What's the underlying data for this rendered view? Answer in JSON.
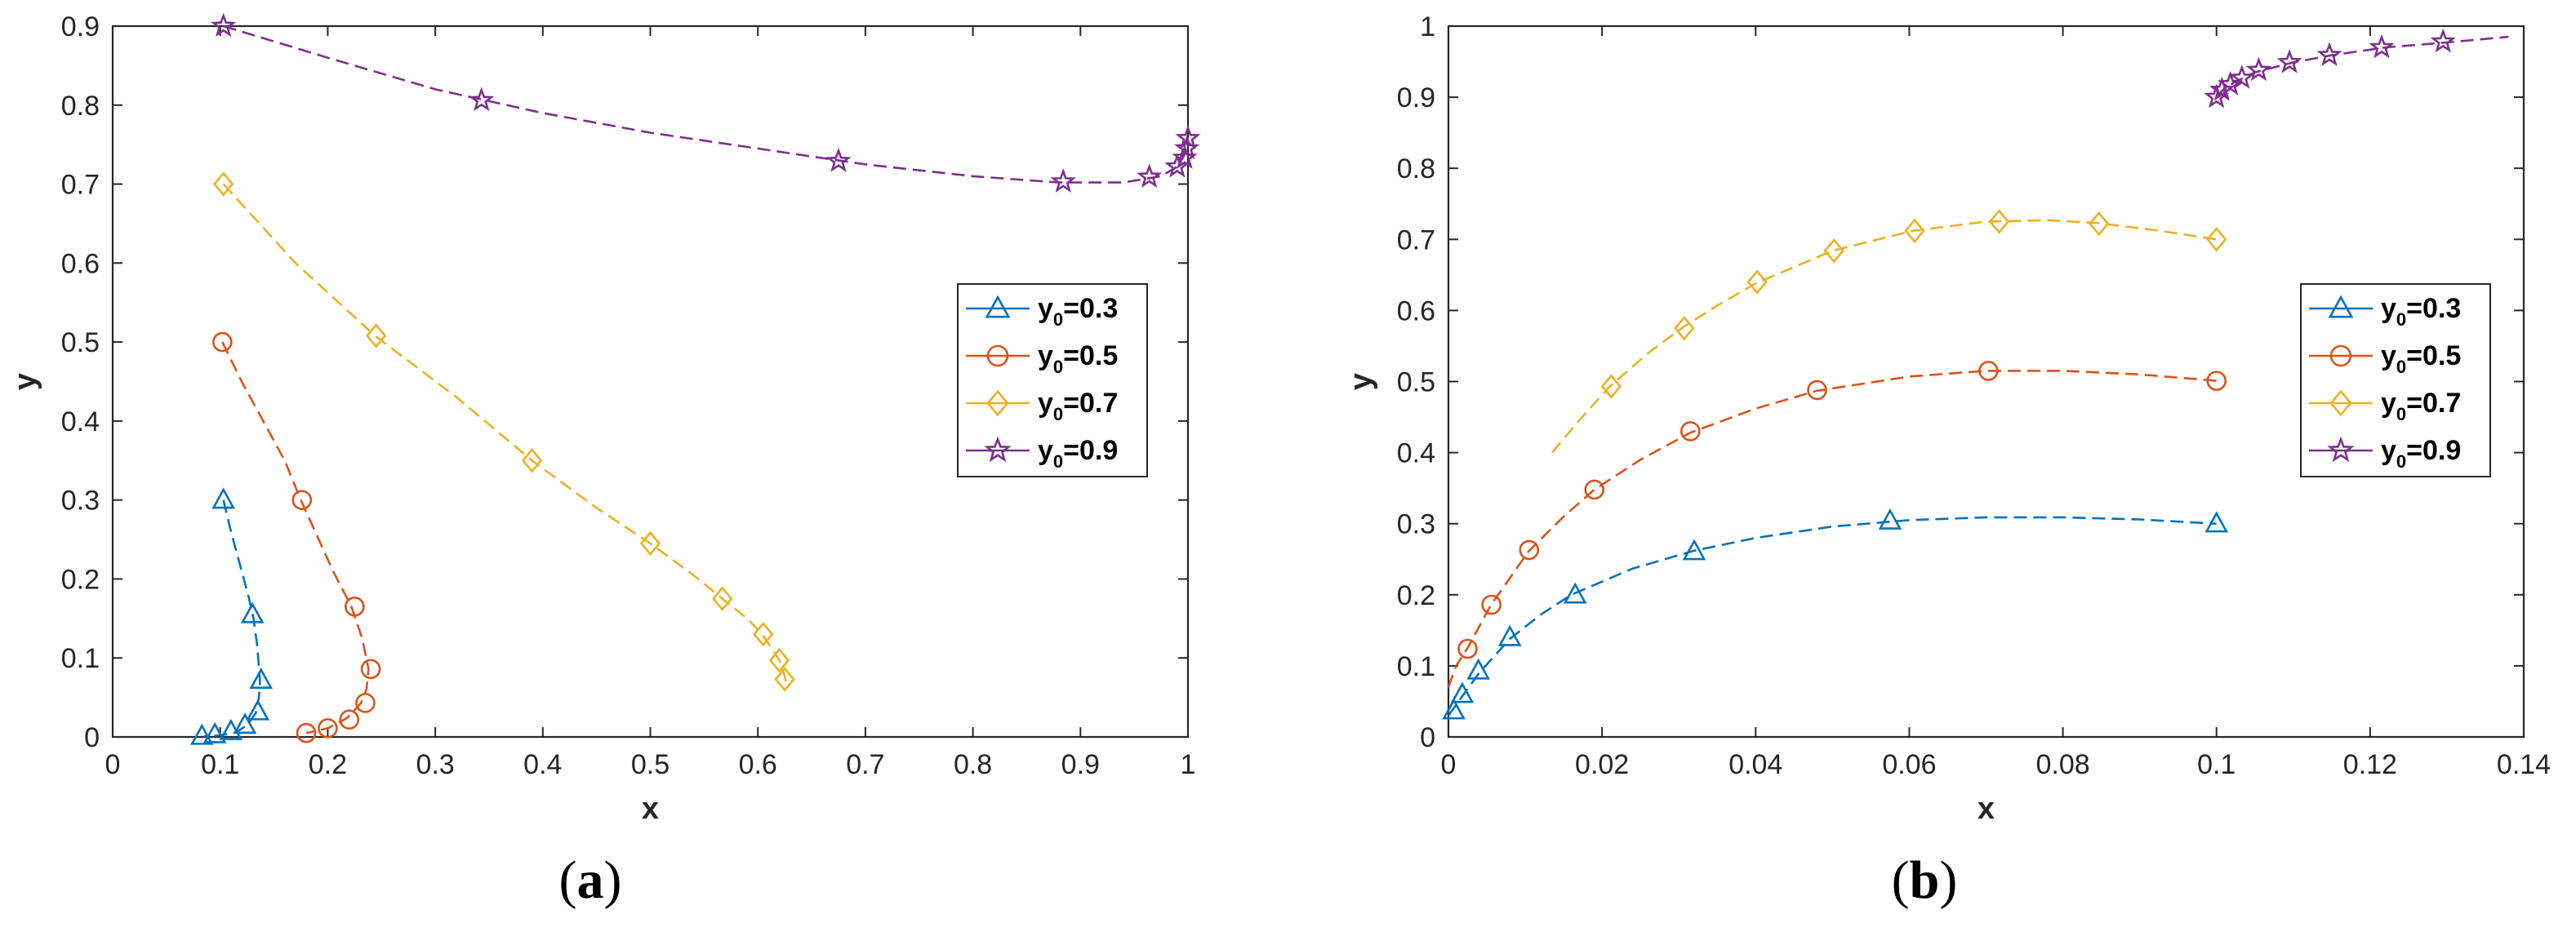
{
  "colors": {
    "s03": "#0072BD",
    "s05": "#D95319",
    "s07": "#EDB120",
    "s09": "#7E2F8E"
  },
  "panel_labels": {
    "a": {
      "open": "(",
      "letter": "a",
      "close": ")"
    },
    "b": {
      "open": "(",
      "letter": "b",
      "close": ")"
    }
  },
  "legend": [
    {
      "prefix": "y",
      "sub": "0",
      "suffix": "=0.3"
    },
    {
      "prefix": "y",
      "sub": "0",
      "suffix": "=0.5"
    },
    {
      "prefix": "y",
      "sub": "0",
      "suffix": "=0.7"
    },
    {
      "prefix": "y",
      "sub": "0",
      "suffix": "=0.9"
    }
  ],
  "chart_data": [
    {
      "type": "line",
      "panel": "a",
      "xlabel": "x",
      "ylabel": "y",
      "xlim": [
        0,
        1
      ],
      "ylim": [
        0,
        0.9
      ],
      "xticks": [
        "0",
        "0.1",
        "0.2",
        "0.3",
        "0.4",
        "0.5",
        "0.6",
        "0.7",
        "0.8",
        "0.9",
        "1"
      ],
      "xtick_values": [
        0,
        0.1,
        0.2,
        0.3,
        0.4,
        0.5,
        0.6,
        0.7,
        0.8,
        0.9,
        1
      ],
      "yticks": [
        "0",
        "0.1",
        "0.2",
        "0.3",
        "0.4",
        "0.5",
        "0.6",
        "0.7",
        "0.8",
        "0.9"
      ],
      "ytick_values": [
        0,
        0.1,
        0.2,
        0.3,
        0.4,
        0.5,
        0.6,
        0.7,
        0.8,
        0.9
      ],
      "legend_position": "right",
      "series": [
        {
          "name": "y0=0.3",
          "marker": "triangle",
          "color_key": "s03",
          "curve": [
            [
              0.103,
              0.3
            ],
            [
              0.11,
              0.26
            ],
            [
              0.118,
              0.22
            ],
            [
              0.126,
              0.18
            ],
            [
              0.131,
              0.15
            ],
            [
              0.134,
              0.12
            ],
            [
              0.136,
              0.09
            ],
            [
              0.137,
              0.07
            ],
            [
              0.136,
              0.05
            ],
            [
              0.133,
              0.03
            ],
            [
              0.125,
              0.015
            ],
            [
              0.115,
              0.006
            ],
            [
              0.1,
              0.002
            ],
            [
              0.085,
              0.001
            ]
          ],
          "markers": [
            [
              0.103,
              0.3
            ],
            [
              0.13,
              0.155
            ],
            [
              0.138,
              0.072
            ],
            [
              0.135,
              0.032
            ],
            [
              0.123,
              0.015
            ],
            [
              0.11,
              0.007
            ],
            [
              0.095,
              0.003
            ],
            [
              0.083,
              0.001
            ]
          ]
        },
        {
          "name": "y0=0.5",
          "marker": "circle",
          "color_key": "s05",
          "curve": [
            [
              0.102,
              0.5
            ],
            [
              0.12,
              0.45
            ],
            [
              0.14,
              0.4
            ],
            [
              0.16,
              0.35
            ],
            [
              0.175,
              0.3
            ],
            [
              0.19,
              0.255
            ],
            [
              0.205,
              0.21
            ],
            [
              0.222,
              0.165
            ],
            [
              0.232,
              0.125
            ],
            [
              0.238,
              0.086
            ],
            [
              0.236,
              0.06
            ],
            [
              0.231,
              0.043
            ],
            [
              0.218,
              0.024
            ],
            [
              0.2,
              0.011
            ],
            [
              0.18,
              0.005
            ]
          ],
          "markers": [
            [
              0.102,
              0.5
            ],
            [
              0.176,
              0.3
            ],
            [
              0.225,
              0.165
            ],
            [
              0.24,
              0.086
            ],
            [
              0.235,
              0.043
            ],
            [
              0.22,
              0.022
            ],
            [
              0.2,
              0.011
            ],
            [
              0.18,
              0.005
            ]
          ]
        },
        {
          "name": "y0=0.7",
          "marker": "diamond",
          "color_key": "s07",
          "curve": [
            [
              0.103,
              0.7
            ],
            [
              0.17,
              0.6
            ],
            [
              0.244,
              0.508
            ],
            [
              0.32,
              0.43
            ],
            [
              0.39,
              0.35
            ],
            [
              0.45,
              0.29
            ],
            [
              0.5,
              0.245
            ],
            [
              0.54,
              0.205
            ],
            [
              0.567,
              0.175
            ],
            [
              0.59,
              0.15
            ],
            [
              0.604,
              0.13
            ],
            [
              0.614,
              0.11
            ],
            [
              0.62,
              0.097
            ],
            [
              0.624,
              0.082
            ],
            [
              0.627,
              0.065
            ]
          ],
          "markers": [
            [
              0.103,
              0.7
            ],
            [
              0.245,
              0.508
            ],
            [
              0.39,
              0.35
            ],
            [
              0.5,
              0.245
            ],
            [
              0.567,
              0.175
            ],
            [
              0.605,
              0.13
            ],
            [
              0.62,
              0.097
            ],
            [
              0.625,
              0.073
            ]
          ]
        },
        {
          "name": "y0=0.9",
          "marker": "star",
          "color_key": "s09",
          "curve": [
            [
              0.103,
              0.9
            ],
            [
              0.2,
              0.86
            ],
            [
              0.3,
              0.82
            ],
            [
              0.4,
              0.79
            ],
            [
              0.5,
              0.765
            ],
            [
              0.6,
              0.745
            ],
            [
              0.7,
              0.725
            ],
            [
              0.8,
              0.71
            ],
            [
              0.88,
              0.702
            ],
            [
              0.94,
              0.702
            ],
            [
              0.975,
              0.71
            ],
            [
              0.99,
              0.722
            ],
            [
              0.996,
              0.735
            ],
            [
              0.999,
              0.748
            ],
            [
              1.0,
              0.76
            ]
          ],
          "markers": [
            [
              0.103,
              0.9
            ],
            [
              0.343,
              0.806
            ],
            [
              0.675,
              0.729
            ],
            [
              0.884,
              0.703
            ],
            [
              0.964,
              0.709
            ],
            [
              0.99,
              0.722
            ],
            [
              0.997,
              0.733
            ],
            [
              0.999,
              0.745
            ],
            [
              1.0,
              0.758
            ]
          ]
        }
      ]
    },
    {
      "type": "line",
      "panel": "b",
      "xlabel": "x",
      "ylabel": "y",
      "xlim": [
        0,
        0.14
      ],
      "ylim": [
        0,
        1
      ],
      "xticks": [
        "0",
        "0.02",
        "0.04",
        "0.06",
        "0.08",
        "0.1",
        "0.12",
        "0.14"
      ],
      "xtick_values": [
        0,
        0.02,
        0.04,
        0.06,
        0.08,
        0.1,
        0.12,
        0.14
      ],
      "yticks": [
        "0",
        "0.1",
        "0.2",
        "0.3",
        "0.4",
        "0.5",
        "0.6",
        "0.7",
        "0.8",
        "0.9",
        "1"
      ],
      "ytick_values": [
        0,
        0.1,
        0.2,
        0.3,
        0.4,
        0.5,
        0.6,
        0.7,
        0.8,
        0.9,
        1
      ],
      "legend_position": "right",
      "series": [
        {
          "name": "y0=0.3",
          "marker": "triangle",
          "color_key": "s03",
          "curve": [
            [
              0,
              0.03
            ],
            [
              0.002,
              0.06
            ],
            [
              0.004,
              0.09
            ],
            [
              0.008,
              0.138
            ],
            [
              0.012,
              0.172
            ],
            [
              0.016,
              0.2
            ],
            [
              0.024,
              0.237
            ],
            [
              0.032,
              0.262
            ],
            [
              0.04,
              0.28
            ],
            [
              0.05,
              0.296
            ],
            [
              0.06,
              0.305
            ],
            [
              0.07,
              0.309
            ],
            [
              0.08,
              0.309
            ],
            [
              0.09,
              0.306
            ],
            [
              0.1,
              0.3
            ]
          ],
          "markers": [
            [
              0.0007,
              0.037
            ],
            [
              0.0018,
              0.06
            ],
            [
              0.0039,
              0.093
            ],
            [
              0.008,
              0.14
            ],
            [
              0.0165,
              0.2
            ],
            [
              0.032,
              0.261
            ],
            [
              0.0575,
              0.304
            ],
            [
              0.1,
              0.3
            ]
          ]
        },
        {
          "name": "y0=0.5",
          "marker": "circle",
          "color_key": "s05",
          "curve": [
            [
              0,
              0.07
            ],
            [
              0.001,
              0.1
            ],
            [
              0.0025,
              0.125
            ],
            [
              0.0055,
              0.185
            ],
            [
              0.0105,
              0.262
            ],
            [
              0.015,
              0.31
            ],
            [
              0.019,
              0.348
            ],
            [
              0.025,
              0.39
            ],
            [
              0.0315,
              0.428
            ],
            [
              0.04,
              0.462
            ],
            [
              0.048,
              0.487
            ],
            [
              0.06,
              0.507
            ],
            [
              0.07,
              0.515
            ],
            [
              0.08,
              0.515
            ],
            [
              0.09,
              0.51
            ],
            [
              0.1,
              0.501
            ]
          ],
          "markers": [
            [
              0.0025,
              0.124
            ],
            [
              0.0056,
              0.186
            ],
            [
              0.0105,
              0.263
            ],
            [
              0.019,
              0.348
            ],
            [
              0.0315,
              0.43
            ],
            [
              0.048,
              0.488
            ],
            [
              0.0703,
              0.515
            ],
            [
              0.1,
              0.501
            ]
          ]
        },
        {
          "name": "y0=0.7",
          "marker": "diamond",
          "color_key": "s07",
          "curve": [
            [
              0.0135,
              0.4
            ],
            [
              0.017,
              0.445
            ],
            [
              0.021,
              0.493
            ],
            [
              0.026,
              0.54
            ],
            [
              0.0305,
              0.576
            ],
            [
              0.035,
              0.607
            ],
            [
              0.04,
              0.638
            ],
            [
              0.05,
              0.684
            ],
            [
              0.0605,
              0.712
            ],
            [
              0.07,
              0.725
            ],
            [
              0.078,
              0.727
            ],
            [
              0.0845,
              0.723
            ],
            [
              0.092,
              0.713
            ],
            [
              0.1,
              0.7
            ]
          ],
          "markers": [
            [
              0.0212,
              0.493
            ],
            [
              0.0307,
              0.575
            ],
            [
              0.0402,
              0.64
            ],
            [
              0.0502,
              0.684
            ],
            [
              0.0607,
              0.712
            ],
            [
              0.0717,
              0.725
            ],
            [
              0.0847,
              0.722
            ],
            [
              0.1,
              0.7
            ]
          ]
        },
        {
          "name": "y0=0.9",
          "marker": "star",
          "color_key": "s09",
          "curve": [
            [
              0.1,
              0.9
            ],
            [
              0.1004,
              0.905
            ],
            [
              0.101,
              0.912
            ],
            [
              0.1025,
              0.922
            ],
            [
              0.105,
              0.935
            ],
            [
              0.11,
              0.949
            ],
            [
              0.115,
              0.959
            ],
            [
              0.122,
              0.97
            ],
            [
              0.13,
              0.977
            ],
            [
              0.138,
              0.985
            ]
          ],
          "markers": [
            [
              0.1,
              0.9
            ],
            [
              0.1007,
              0.91
            ],
            [
              0.1018,
              0.918
            ],
            [
              0.1033,
              0.927
            ],
            [
              0.1055,
              0.938
            ],
            [
              0.1095,
              0.949
            ],
            [
              0.1147,
              0.959
            ],
            [
              0.1215,
              0.97
            ],
            [
              0.1295,
              0.978
            ]
          ]
        }
      ]
    }
  ]
}
